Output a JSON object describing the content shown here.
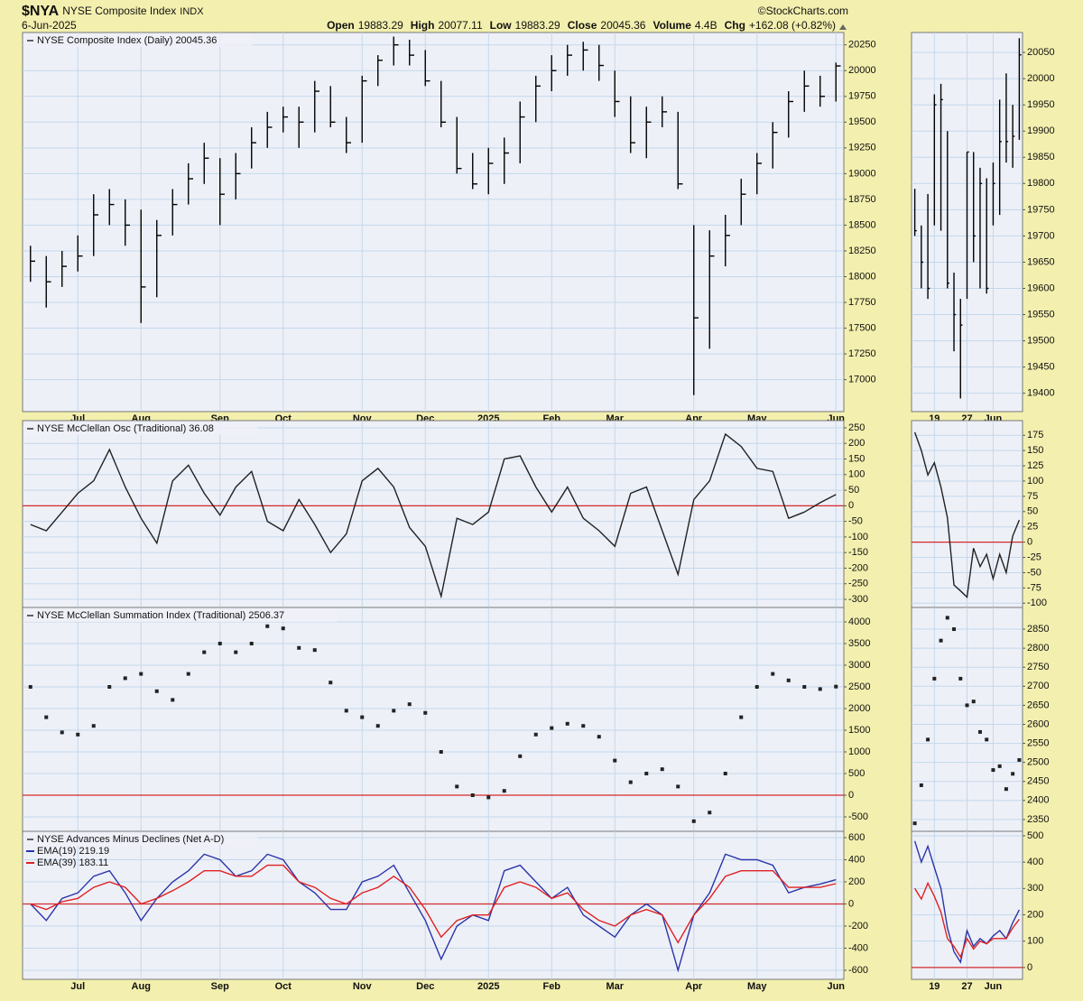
{
  "header": {
    "symbol": "$NYA",
    "name": "NYSE Composite Index",
    "exchange": "INDX",
    "date": "6-Jun-2025",
    "source": "©StockCharts.com",
    "stats": [
      {
        "label": "Open",
        "value": 19883.29
      },
      {
        "label": "High",
        "value": 20077.11
      },
      {
        "label": "Low",
        "value": 19883.29
      },
      {
        "label": "Close",
        "value": 20045.36
      },
      {
        "label": "Volume",
        "value": "4.4B"
      },
      {
        "label": "Chg",
        "value": "+162.08 (+0.82%)"
      }
    ]
  },
  "chart_data": [
    {
      "type": "hlc",
      "title": "NYSE Composite Index (Daily) 20045.36",
      "color": "#000000",
      "categories": [
        null,
        null,
        null,
        "Jul",
        null,
        null,
        null,
        "Aug",
        null,
        null,
        null,
        null,
        "Sep",
        null,
        null,
        null,
        "Oct",
        null,
        null,
        null,
        null,
        "Nov",
        null,
        null,
        null,
        "Dec",
        null,
        null,
        null,
        "2025",
        null,
        null,
        null,
        "Feb",
        null,
        null,
        null,
        "Mar",
        null,
        null,
        null,
        null,
        "Apr",
        null,
        null,
        null,
        "May",
        null,
        null,
        null,
        null,
        "Jun"
      ],
      "high": [
        18300,
        18200,
        18250,
        18400,
        18800,
        18850,
        18750,
        18650,
        18550,
        18850,
        19100,
        19300,
        19150,
        19200,
        19450,
        19600,
        19650,
        19650,
        19900,
        19850,
        19550,
        19950,
        20150,
        20330,
        20300,
        20200,
        19900,
        19550,
        19200,
        19250,
        19350,
        19700,
        19950,
        20150,
        20250,
        20280,
        20250,
        20000,
        19750,
        19650,
        19750,
        19600,
        18500,
        18450,
        18600,
        18950,
        19200,
        19500,
        19800,
        20000,
        19950,
        20077.11
      ],
      "low": [
        17950,
        17700,
        17900,
        18050,
        18200,
        18500,
        18300,
        17550,
        17800,
        18400,
        18700,
        18900,
        18500,
        18750,
        19050,
        19250,
        19400,
        19250,
        19400,
        19450,
        19200,
        19300,
        19850,
        20050,
        20050,
        19850,
        19450,
        19000,
        18850,
        18800,
        18900,
        19100,
        19500,
        19800,
        19950,
        20000,
        19900,
        19550,
        19200,
        19150,
        19450,
        18850,
        16850,
        17300,
        18100,
        18500,
        18800,
        19050,
        19350,
        19600,
        19650,
        19700
      ],
      "close": [
        18150,
        17950,
        18100,
        18200,
        18600,
        18700,
        18500,
        17900,
        18400,
        18700,
        18950,
        19150,
        18800,
        19000,
        19300,
        19450,
        19550,
        19500,
        19800,
        19500,
        19300,
        19900,
        20100,
        20250,
        20150,
        19900,
        19500,
        19050,
        18900,
        19100,
        19200,
        19550,
        19850,
        20000,
        20150,
        20200,
        20050,
        19700,
        19300,
        19500,
        19600,
        18900,
        17600,
        18200,
        18400,
        18800,
        19100,
        19400,
        19700,
        19850,
        19750,
        20045.36
      ],
      "ylim": [
        16690,
        20370
      ],
      "yticks": [
        17000,
        17250,
        17500,
        17750,
        18000,
        18250,
        18500,
        18750,
        19000,
        19250,
        19500,
        19750,
        20000,
        20250
      ],
      "grid": true
    },
    {
      "type": "line",
      "title": "NYSE McClellan Osc (Traditional) 36.08",
      "color": "#222222",
      "values": [
        -60,
        -80,
        -20,
        40,
        80,
        180,
        60,
        -40,
        -120,
        80,
        130,
        40,
        -30,
        60,
        110,
        -50,
        -80,
        20,
        -60,
        -150,
        -90,
        80,
        120,
        60,
        -70,
        -130,
        -290,
        -40,
        -60,
        -20,
        150,
        160,
        60,
        -20,
        60,
        -40,
        -80,
        -130,
        40,
        60,
        -80,
        -220,
        20,
        80,
        230,
        190,
        120,
        110,
        -40,
        -20,
        10,
        36.08
      ],
      "hline": 0,
      "hline_color": "#d42a2a",
      "ylim": [
        -326,
        273
      ],
      "yticks": [
        -300,
        -250,
        -200,
        -150,
        -100,
        -50,
        0,
        50,
        100,
        150,
        200,
        250
      ],
      "grid": true
    },
    {
      "type": "dot",
      "title": "NYSE McClellan Summation Index (Traditional) 2506.37",
      "color": "#222222",
      "values": [
        2500,
        1800,
        1450,
        1400,
        1600,
        2500,
        2700,
        2800,
        2400,
        2200,
        2800,
        3300,
        3500,
        3300,
        3500,
        3900,
        3850,
        3400,
        3350,
        2600,
        1950,
        1800,
        1600,
        1950,
        2100,
        1900,
        1000,
        200,
        0,
        -50,
        100,
        900,
        1400,
        1550,
        1650,
        1600,
        1350,
        800,
        300,
        500,
        600,
        200,
        -600,
        -400,
        500,
        1800,
        2500,
        2800,
        2650,
        2500,
        2450,
        2506.37
      ],
      "hline": 0,
      "hline_color": "#d42a2a",
      "ylim": [
        -833,
        4333
      ],
      "yticks": [
        -500,
        0,
        500,
        1000,
        1500,
        2000,
        2500,
        3000,
        3500,
        4000
      ],
      "grid": true
    },
    {
      "type": "line",
      "title": "NYSE Advances Minus Declines (Net A-D)",
      "categories": [
        null,
        null,
        null,
        "Jul",
        null,
        null,
        null,
        "Aug",
        null,
        null,
        null,
        null,
        "Sep",
        null,
        null,
        null,
        "Oct",
        null,
        null,
        null,
        null,
        "Nov",
        null,
        null,
        null,
        "Dec",
        null,
        null,
        null,
        "2025",
        null,
        null,
        null,
        "Feb",
        null,
        null,
        null,
        "Mar",
        null,
        null,
        null,
        null,
        "Apr",
        null,
        null,
        null,
        "May",
        null,
        null,
        null,
        null,
        "Jun"
      ],
      "series": [
        {
          "name": "EMA(19) 219.19",
          "color": "#2a35a8",
          "values": [
            0,
            -150,
            50,
            100,
            250,
            300,
            100,
            -150,
            50,
            200,
            300,
            450,
            400,
            250,
            300,
            450,
            400,
            200,
            100,
            -50,
            -50,
            200,
            250,
            350,
            100,
            -150,
            -500,
            -200,
            -100,
            -150,
            300,
            350,
            200,
            50,
            150,
            -100,
            -200,
            -300,
            -100,
            0,
            -100,
            -600,
            -100,
            100,
            450,
            400,
            400,
            350,
            100,
            150,
            180,
            219.19
          ]
        },
        {
          "name": "EMA(39) 183.11",
          "color": "#e02020",
          "values": [
            0,
            -50,
            20,
            50,
            150,
            200,
            150,
            0,
            50,
            120,
            200,
            300,
            300,
            250,
            250,
            350,
            350,
            200,
            150,
            50,
            0,
            100,
            150,
            250,
            150,
            -50,
            -300,
            -150,
            -100,
            -100,
            150,
            200,
            150,
            50,
            100,
            -50,
            -150,
            -200,
            -100,
            -50,
            -100,
            -350,
            -100,
            50,
            250,
            300,
            300,
            300,
            150,
            150,
            150,
            183.11
          ]
        }
      ],
      "hline": 0,
      "hline_color": "#d42a2a",
      "ylim": [
        -682,
        657
      ],
      "yticks": [
        -600,
        -400,
        -200,
        0,
        200,
        400,
        600
      ],
      "grid": true
    },
    {
      "type": "hlc",
      "color": "#000000",
      "categories": [
        null,
        null,
        null,
        "19",
        null,
        null,
        null,
        null,
        "27",
        null,
        null,
        null,
        "Jun",
        null,
        null,
        null,
        null
      ],
      "high": [
        19790,
        19720,
        19780,
        19970,
        19990,
        19900,
        19630,
        19580,
        19860,
        19860,
        19830,
        19810,
        19840,
        19960,
        20010,
        19950,
        20077.11
      ],
      "low": [
        19700,
        19600,
        19580,
        19720,
        19710,
        19600,
        19480,
        19390,
        19580,
        19650,
        19600,
        19590,
        19720,
        19740,
        19840,
        19830,
        19883.29
      ],
      "close": [
        19710,
        19650,
        19600,
        19950,
        19960,
        19610,
        19550,
        19530,
        19860,
        19700,
        19800,
        19600,
        19800,
        19880,
        19880,
        19890,
        20045.36
      ],
      "ylim": [
        19365,
        20088
      ],
      "yticks": [
        19400,
        19450,
        19500,
        19550,
        19600,
        19650,
        19700,
        19750,
        19800,
        19850,
        19900,
        19950,
        20000,
        20050
      ],
      "grid": true
    },
    {
      "type": "line",
      "color": "#222222",
      "values": [
        180,
        150,
        110,
        130,
        90,
        40,
        -70,
        -80,
        -90,
        -10,
        -40,
        -20,
        -60,
        -20,
        -50,
        10,
        36.08
      ],
      "hline": 0,
      "hline_color": "#d42a2a",
      "ylim": [
        -107,
        199
      ],
      "yticks": [
        -100,
        -75,
        -50,
        -25,
        0,
        25,
        50,
        75,
        100,
        125,
        150,
        175
      ],
      "grid": true
    },
    {
      "type": "dot",
      "color": "#222222",
      "values": [
        2340,
        2440,
        2560,
        2720,
        2820,
        2880,
        2850,
        2720,
        2650,
        2660,
        2580,
        2560,
        2480,
        2490,
        2430,
        2470,
        2506.37
      ],
      "ylim": [
        2319,
        2907
      ],
      "yticks": [
        2350,
        2400,
        2450,
        2500,
        2550,
        2600,
        2650,
        2700,
        2750,
        2800,
        2850
      ],
      "grid": true
    },
    {
      "type": "line",
      "categories": [
        null,
        null,
        null,
        "19",
        null,
        null,
        null,
        null,
        "27",
        null,
        null,
        null,
        "Jun",
        null,
        null,
        null,
        null
      ],
      "series": [
        {
          "color": "#2a35a8",
          "values": [
            480,
            400,
            460,
            380,
            300,
            150,
            60,
            20,
            140,
            80,
            110,
            90,
            120,
            140,
            110,
            170,
            219.19
          ]
        },
        {
          "color": "#e02020",
          "values": [
            300,
            260,
            320,
            270,
            210,
            110,
            80,
            40,
            110,
            70,
            100,
            90,
            110,
            110,
            110,
            150,
            183.11
          ]
        }
      ],
      "hline": 0,
      "hline_color": "#d42a2a",
      "ylim": [
        -45,
        517
      ],
      "yticks": [
        0,
        100,
        200,
        300,
        400,
        500
      ],
      "grid": true
    }
  ]
}
